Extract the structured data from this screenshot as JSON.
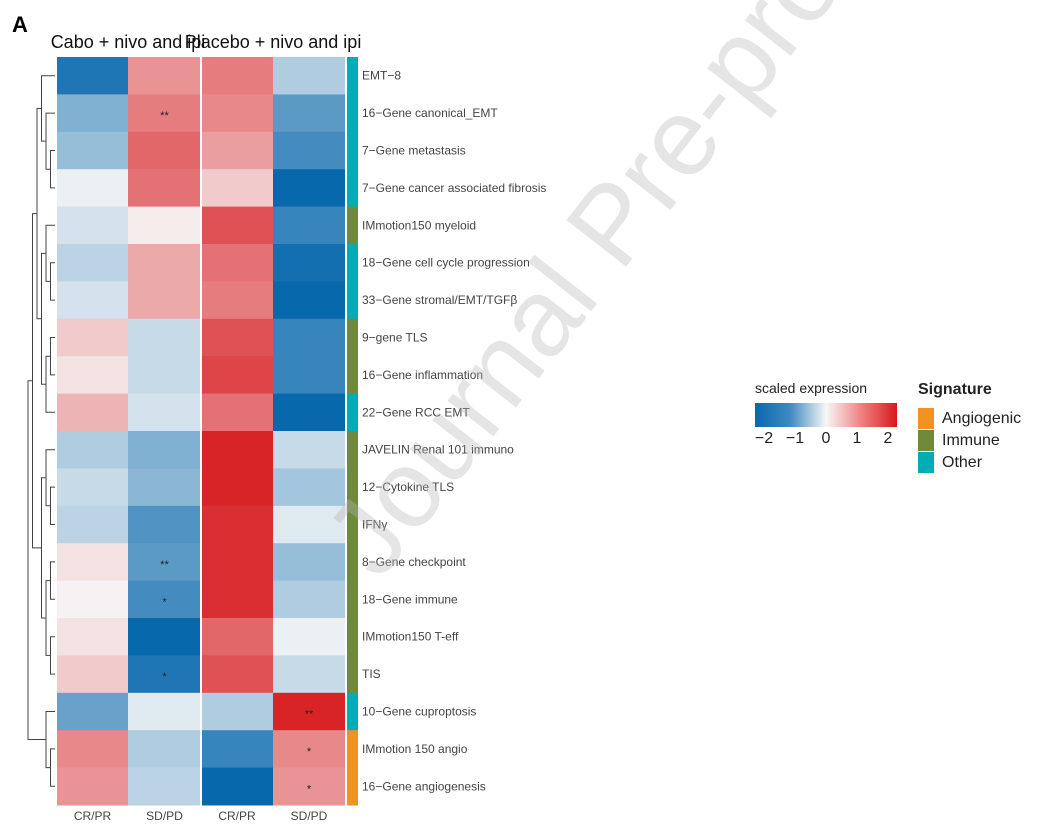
{
  "panel_label": "A",
  "watermark": "Journal Pre-proof",
  "chart_data": {
    "type": "heatmap",
    "title": "",
    "groups": [
      "Cabo + nivo and ipi",
      "Placebo + nivo and ipi"
    ],
    "columns": [
      "CR/PR",
      "SD/PD",
      "CR/PR",
      "SD/PD"
    ],
    "value_range": [
      -2,
      2
    ],
    "rows": [
      {
        "label": "EMT−8",
        "signature": "Other",
        "values": [
          -1.8,
          0.9,
          1.1,
          -0.6
        ],
        "stars": [
          "",
          "",
          "",
          ""
        ]
      },
      {
        "label": "16−Gene canonical_EMT",
        "signature": "Other",
        "values": [
          -1.0,
          1.1,
          1.0,
          -1.3
        ],
        "stars": [
          "",
          "**",
          "",
          ""
        ]
      },
      {
        "label": "7−Gene metastasis",
        "signature": "Other",
        "values": [
          -0.8,
          1.3,
          0.8,
          -1.5
        ],
        "stars": [
          "",
          "",
          "",
          ""
        ]
      },
      {
        "label": "7−Gene cancer associated fibrosis",
        "signature": "Other",
        "values": [
          -0.1,
          1.2,
          0.4,
          -2.0
        ],
        "stars": [
          "",
          "",
          "",
          ""
        ]
      },
      {
        "label": "IMmotion150 myeloid",
        "signature": "Immune",
        "values": [
          -0.3,
          0.1,
          1.5,
          -1.6
        ],
        "stars": [
          "",
          "",
          "",
          ""
        ]
      },
      {
        "label": "18−Gene cell cycle progression",
        "signature": "Other",
        "values": [
          -0.5,
          0.7,
          1.2,
          -1.9
        ],
        "stars": [
          "",
          "",
          "",
          ""
        ]
      },
      {
        "label": "33−Gene stromal/EMT/TGFβ",
        "signature": "Other",
        "values": [
          -0.3,
          0.7,
          1.1,
          -2.0
        ],
        "stars": [
          "",
          "",
          "",
          ""
        ]
      },
      {
        "label": "9−gene TLS",
        "signature": "Immune",
        "values": [
          0.4,
          -0.4,
          1.5,
          -1.6
        ],
        "stars": [
          "",
          "",
          "",
          ""
        ]
      },
      {
        "label": "16−Gene inflammation",
        "signature": "Immune",
        "values": [
          0.2,
          -0.4,
          1.6,
          -1.6
        ],
        "stars": [
          "",
          "",
          "",
          ""
        ]
      },
      {
        "label": "22−Gene RCC EMT",
        "signature": "Other",
        "values": [
          0.6,
          -0.3,
          1.2,
          -2.0
        ],
        "stars": [
          "",
          "",
          "",
          ""
        ]
      },
      {
        "label": "JAVELIN Renal 101 immuno",
        "signature": "Immune",
        "values": [
          -0.6,
          -1.0,
          1.9,
          -0.4
        ],
        "stars": [
          "",
          "",
          "",
          ""
        ]
      },
      {
        "label": "12−Cytokine TLS",
        "signature": "Immune",
        "values": [
          -0.4,
          -0.9,
          1.9,
          -0.7
        ],
        "stars": [
          "",
          "",
          "",
          ""
        ]
      },
      {
        "label": "IFNγ",
        "signature": "Immune",
        "values": [
          -0.5,
          -1.4,
          1.8,
          -0.2
        ],
        "stars": [
          "",
          "",
          "",
          ""
        ]
      },
      {
        "label": "8−Gene checkpoint",
        "signature": "Immune",
        "values": [
          0.2,
          -1.3,
          1.8,
          -0.8
        ],
        "stars": [
          "",
          "**",
          "",
          ""
        ]
      },
      {
        "label": "18−Gene immune",
        "signature": "Immune",
        "values": [
          0.05,
          -1.5,
          1.8,
          -0.6
        ],
        "stars": [
          "",
          "*",
          "",
          ""
        ]
      },
      {
        "label": "IMmotion150 T-eff",
        "signature": "Immune",
        "values": [
          0.2,
          -2.0,
          1.3,
          -0.1
        ],
        "stars": [
          "",
          "",
          "",
          ""
        ]
      },
      {
        "label": "TIS",
        "signature": "Immune",
        "values": [
          0.4,
          -1.8,
          1.5,
          -0.4
        ],
        "stars": [
          "",
          "*",
          "",
          ""
        ]
      },
      {
        "label": "10−Gene cuproptosis",
        "signature": "Other",
        "values": [
          -1.2,
          -0.2,
          -0.6,
          1.9
        ],
        "stars": [
          "",
          "",
          "",
          "**"
        ]
      },
      {
        "label": "IMmotion 150 angio",
        "signature": "Angiogenic",
        "values": [
          1.0,
          -0.6,
          -1.6,
          1.0
        ],
        "stars": [
          "",
          "",
          "",
          "*"
        ]
      },
      {
        "label": "16−Gene angiogenesis",
        "signature": "Angiogenic",
        "values": [
          0.9,
          -0.5,
          -2.0,
          0.9
        ],
        "stars": [
          "",
          "",
          "",
          "*"
        ]
      }
    ],
    "row_dendrogram": [
      [
        [
          [
            0,
            [
              1,
              [
                2,
                3
              ]
            ]
          ],
          [
            [
              4,
              [
                5,
                6
              ]
            ],
            [
              [
                7,
                8
              ],
              9
            ]
          ]
        ],
        [
          [
            10,
            [
              11,
              12
            ]
          ],
          [
            [
              13,
              14
            ],
            [
              15,
              16
            ]
          ]
        ]
      ],
      [
        17,
        [
          18,
          19
        ]
      ]
    ],
    "colorbar": {
      "title": "scaled expression",
      "ticks": [
        "−2",
        "−1",
        "0",
        "1",
        "2"
      ],
      "low": "#0868ac",
      "mid": "#f7f7f7",
      "high": "#d7191c"
    },
    "signature_legend": {
      "title": "Signature",
      "items": [
        {
          "label": "Angiogenic",
          "color": "#f39221"
        },
        {
          "label": "Immune",
          "color": "#6e8b3d"
        },
        {
          "label": "Other",
          "color": "#00adb5"
        }
      ]
    }
  }
}
